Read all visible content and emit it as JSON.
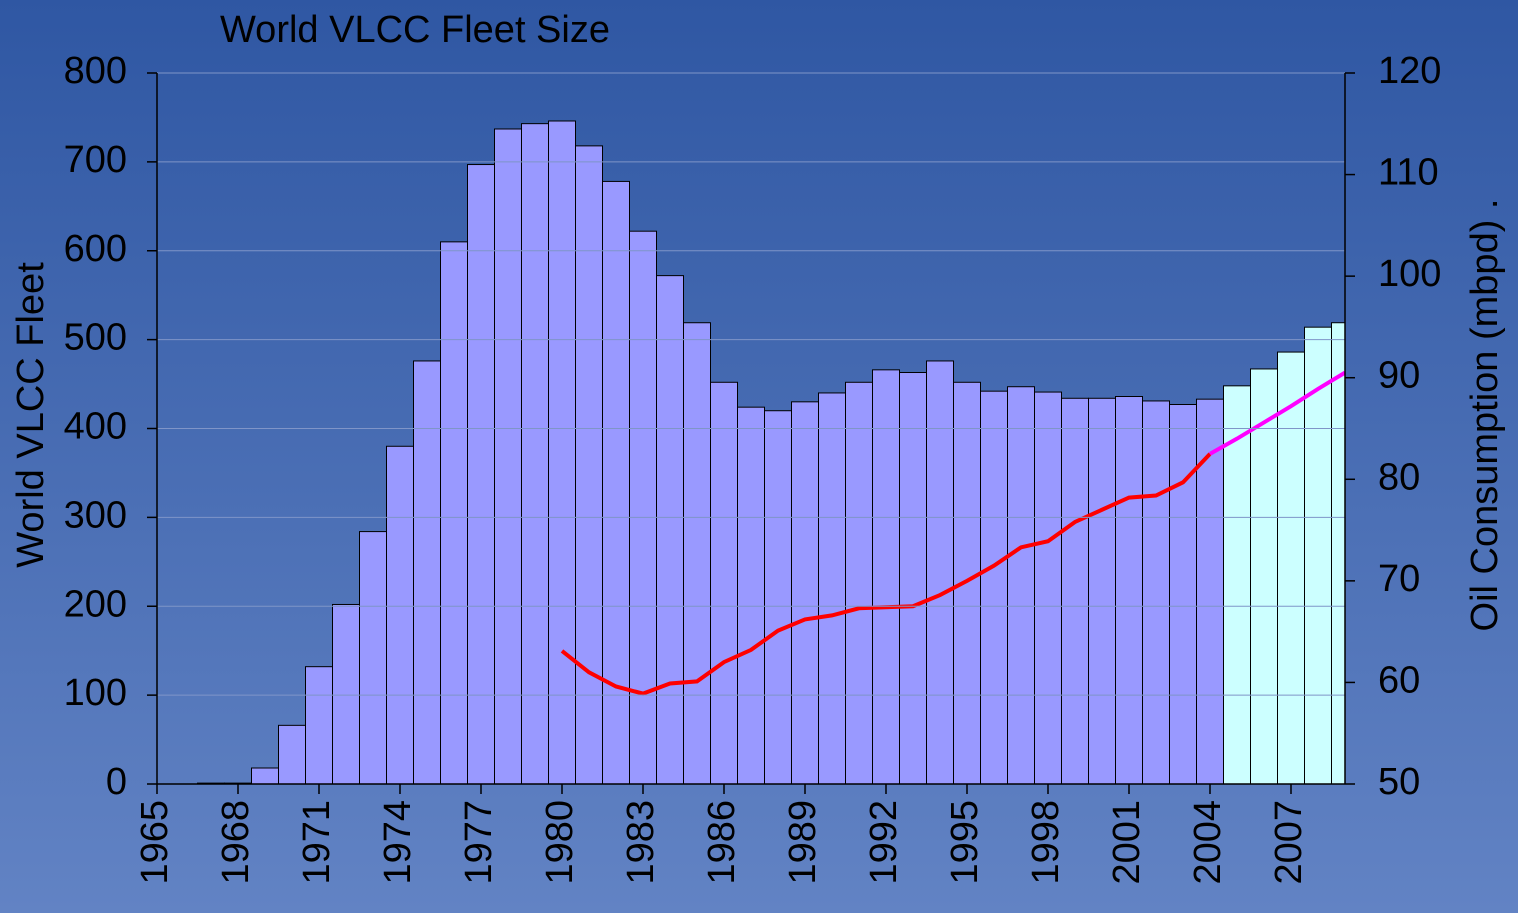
{
  "chart_data": {
    "type": "bar-line",
    "title": "World VLCC Fleet Size",
    "ylabel": "World VLCC Fleet",
    "y2label": "Oil Consumption (mbpd)  .",
    "xlim": [
      1965,
      2009
    ],
    "xticks": [
      1965,
      1968,
      1971,
      1974,
      1977,
      1980,
      1983,
      1986,
      1989,
      1992,
      1995,
      1998,
      2001,
      2004,
      2007
    ],
    "ylim": [
      0,
      800
    ],
    "yticks": [
      0,
      100,
      200,
      300,
      400,
      500,
      600,
      700,
      800
    ],
    "y2lim": [
      50,
      120
    ],
    "y2ticks": [
      50,
      60,
      70,
      80,
      90,
      100,
      110,
      120
    ],
    "grid": true,
    "bars": {
      "x": [
        1967,
        1968,
        1969,
        1970,
        1971,
        1972,
        1973,
        1974,
        1975,
        1976,
        1977,
        1978,
        1979,
        1980,
        1981,
        1982,
        1983,
        1984,
        1985,
        1986,
        1987,
        1988,
        1989,
        1990,
        1991,
        1992,
        1993,
        1994,
        1995,
        1996,
        1997,
        1998,
        1999,
        2000,
        2001,
        2002,
        2003,
        2004,
        2005,
        2006,
        2007,
        2008,
        2009
      ],
      "values": [
        1,
        1,
        18,
        66,
        132,
        202,
        284,
        380,
        476,
        610,
        697,
        737,
        743,
        746,
        718,
        678,
        622,
        572,
        519,
        452,
        424,
        420,
        430,
        440,
        452,
        466,
        463,
        476,
        452,
        442,
        447,
        441,
        434,
        434,
        436,
        431,
        427,
        433,
        448,
        467,
        486,
        514,
        519
      ],
      "colors": [
        "#9999ff",
        "#9999ff",
        "#9999ff",
        "#9999ff",
        "#9999ff",
        "#9999ff",
        "#9999ff",
        "#9999ff",
        "#9999ff",
        "#9999ff",
        "#9999ff",
        "#9999ff",
        "#9999ff",
        "#9999ff",
        "#9999ff",
        "#9999ff",
        "#9999ff",
        "#9999ff",
        "#9999ff",
        "#9999ff",
        "#9999ff",
        "#9999ff",
        "#9999ff",
        "#9999ff",
        "#9999ff",
        "#9999ff",
        "#9999ff",
        "#9999ff",
        "#9999ff",
        "#9999ff",
        "#9999ff",
        "#9999ff",
        "#9999ff",
        "#9999ff",
        "#9999ff",
        "#9999ff",
        "#9999ff",
        "#9999ff",
        "#ccffff",
        "#ccffff",
        "#ccffff",
        "#ccffff",
        "#ccffff"
      ]
    },
    "series": [
      {
        "color": "#ff0000",
        "axis": "y2",
        "x": [
          1980,
          1981,
          1982,
          1983,
          1984,
          1985,
          1986,
          1987,
          1988,
          1989,
          1990,
          1991,
          1992,
          1993,
          1994,
          1995,
          1996,
          1997,
          1998,
          1999,
          2000,
          2001,
          2002,
          2003,
          2004
        ],
        "values": [
          63.1,
          61.0,
          59.6,
          58.9,
          59.9,
          60.1,
          62.0,
          63.2,
          65.1,
          66.2,
          66.6,
          67.3,
          67.4,
          67.5,
          68.6,
          70.0,
          71.5,
          73.3,
          73.9,
          75.8,
          77.0,
          78.2,
          78.4,
          79.7,
          82.5
        ]
      },
      {
        "color": "#ff00ff",
        "axis": "y2",
        "x": [
          2004,
          2005,
          2006,
          2007,
          2008,
          2009
        ],
        "values": [
          82.5,
          84.0,
          85.6,
          87.2,
          88.9,
          90.5
        ]
      }
    ]
  }
}
